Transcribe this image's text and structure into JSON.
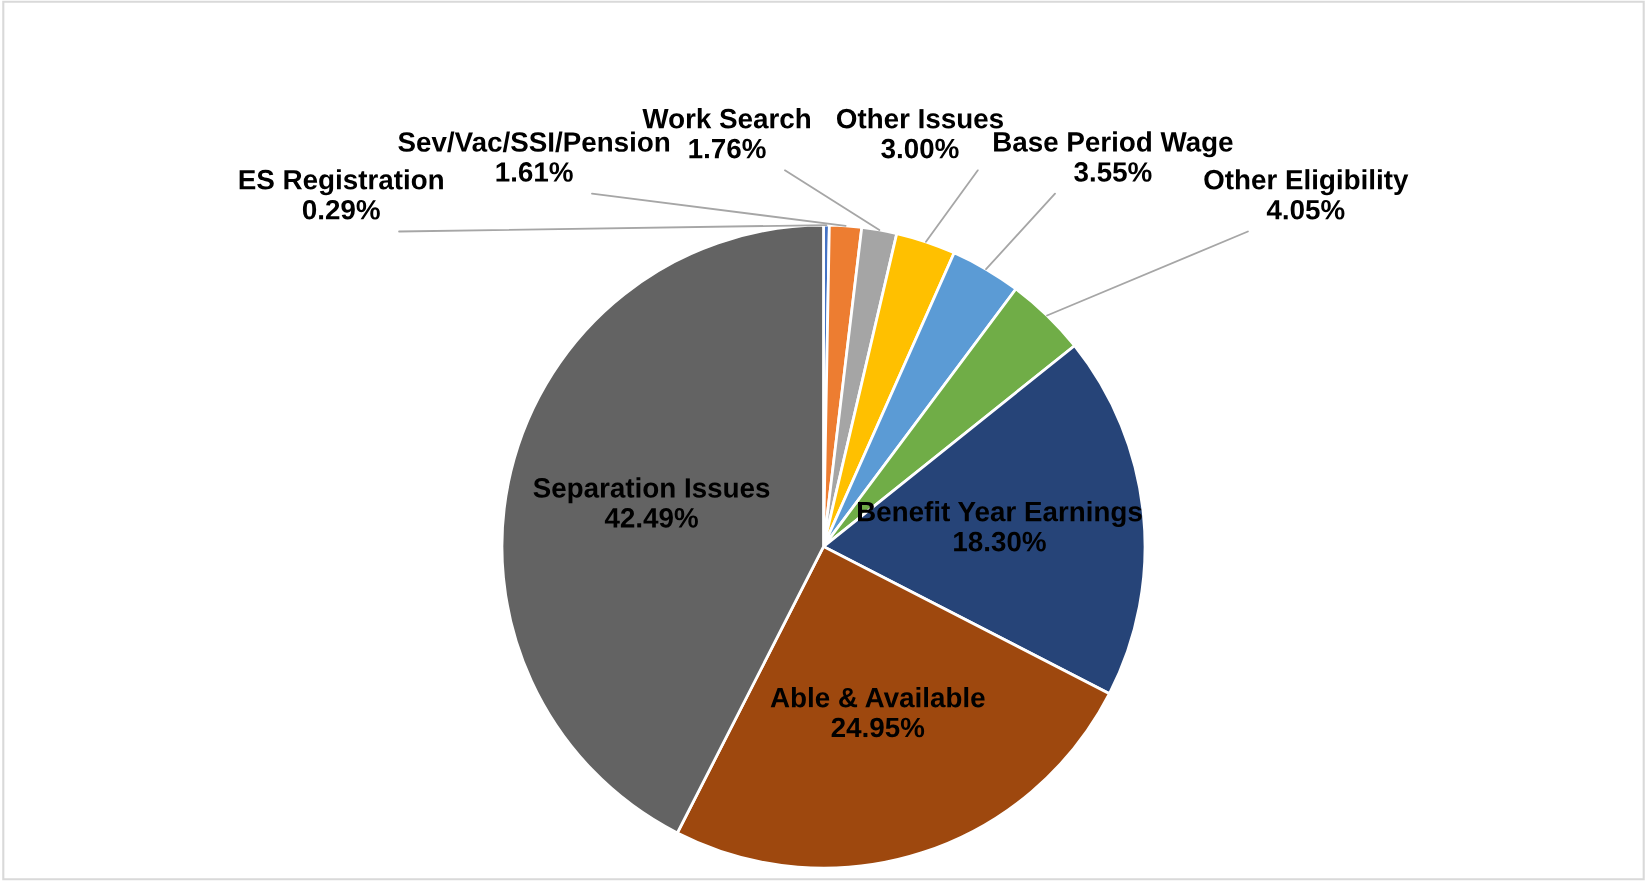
{
  "chart_data": {
    "type": "pie",
    "categories": [
      "ES Registration",
      "Sev/Vac/SSI/Pension",
      "Work Search",
      "Other Issues",
      "Base Period Wage",
      "Other Eligibility",
      "Benefit Year Earnings",
      "Able & Available",
      "Separation Issues"
    ],
    "values": [
      0.29,
      1.61,
      1.76,
      3.0,
      3.55,
      4.05,
      18.3,
      24.95,
      42.49
    ],
    "colors": [
      "#4472c4",
      "#ed7d31",
      "#a5a5a5",
      "#ffc000",
      "#5b9bd5",
      "#70ad47",
      "#264478",
      "#9e480e",
      "#636363"
    ],
    "value_labels": [
      "0.29%",
      "1.61%",
      "1.76%",
      "3.00%",
      "3.55%",
      "4.05%",
      "18.30%",
      "24.95%",
      "42.49%"
    ],
    "legend": false
  }
}
